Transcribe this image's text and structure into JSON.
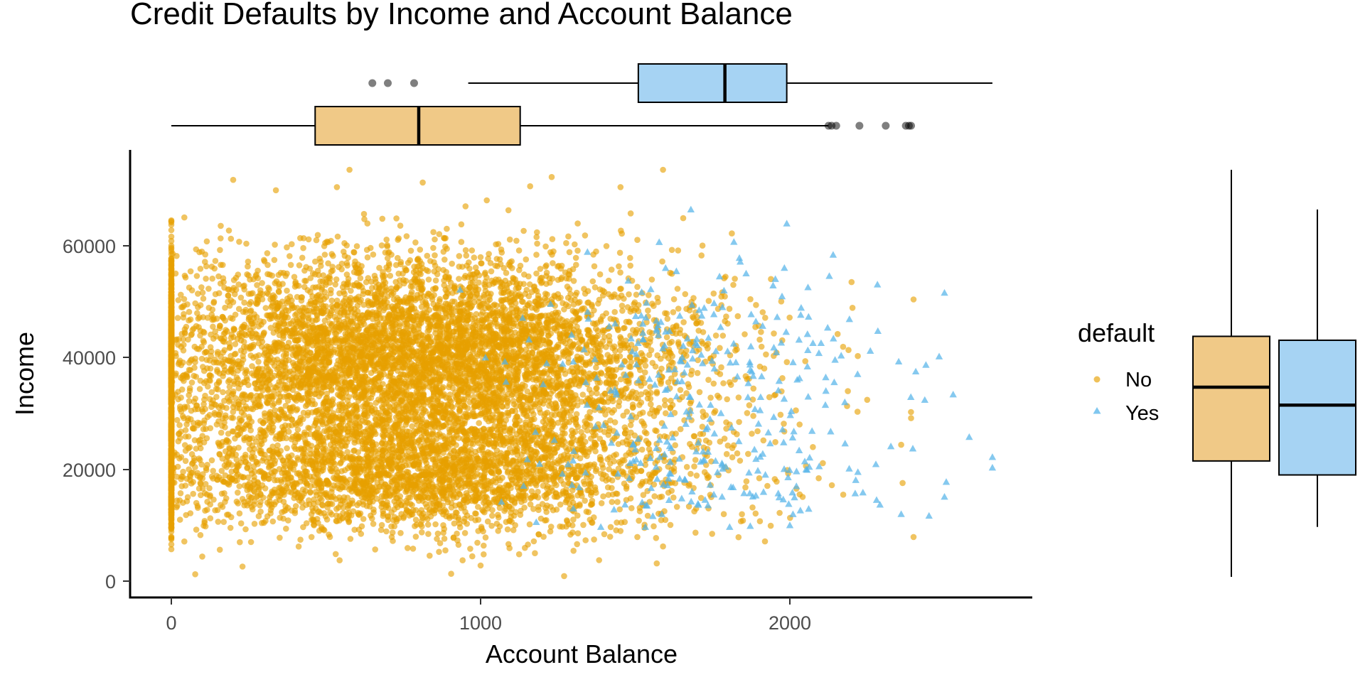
{
  "colors": {
    "no": "#E69F00",
    "yes": "#56B4E9",
    "no_box": "#F0C987",
    "yes_box": "#A6D3F3",
    "ink": "#000000",
    "tick_text": "#4D4D4D"
  },
  "chart_data": {
    "type": "scatter",
    "title": "Credit Defaults by Income and Account Balance",
    "xlabel": "Account Balance",
    "ylabel": "Income",
    "xlim": [
      -130,
      2780
    ],
    "ylim": [
      -2500,
      77000
    ],
    "x_ticks": [
      "0",
      "1000",
      "2000"
    ],
    "y_ticks": [
      "0",
      "20000",
      "40000",
      "60000"
    ],
    "grid": false,
    "legend": {
      "title": "default",
      "position": "right",
      "entries": [
        "No",
        "Yes"
      ]
    },
    "series": [
      {
        "name": "No",
        "color": "#E69F00",
        "marker": "circle",
        "point_count_drawn": 9667,
        "balance_distribution": {
          "zero_fraction": 0.08,
          "q1": 465,
          "median": 800,
          "q3": 1128,
          "max": 2392
        },
        "income_distribution": {
          "q1": 21500,
          "median": 34700,
          "q3": 43800,
          "min": 770,
          "max": 73600
        },
        "sample_points": [
          {
            "x": 0,
            "y": 62800
          },
          {
            "x": 0,
            "y": 9500
          },
          {
            "x": 100,
            "y": 4400
          },
          {
            "x": 230,
            "y": 2600
          },
          {
            "x": 1270,
            "y": 900
          },
          {
            "x": 1000,
            "y": 2800
          },
          {
            "x": 1590,
            "y": 73600
          },
          {
            "x": 1230,
            "y": 72300
          },
          {
            "x": 200,
            "y": 71800
          },
          {
            "x": 2400,
            "y": 50400
          },
          {
            "x": 2400,
            "y": 7900
          },
          {
            "x": 2360,
            "y": 24400
          }
        ]
      },
      {
        "name": "Yes",
        "color": "#56B4E9",
        "marker": "triangle",
        "point_count_drawn": 333,
        "balance_distribution": {
          "q1": 1510,
          "median": 1790,
          "q3": 1990,
          "whisker_low": 960,
          "max": 2655
        },
        "income_distribution": {
          "q1": 19000,
          "median": 31500,
          "q3": 43100,
          "min": 9700,
          "max": 66500
        },
        "sample_points": [
          {
            "x": 2655,
            "y": 22200
          },
          {
            "x": 2580,
            "y": 25800
          },
          {
            "x": 2500,
            "y": 51600
          },
          {
            "x": 2500,
            "y": 15100
          },
          {
            "x": 2450,
            "y": 11700
          },
          {
            "x": 2440,
            "y": 38700
          },
          {
            "x": 1680,
            "y": 66500
          },
          {
            "x": 1990,
            "y": 64000
          },
          {
            "x": 2140,
            "y": 58400
          },
          {
            "x": 2000,
            "y": 10000
          },
          {
            "x": 2360,
            "y": 12000
          },
          {
            "x": 1300,
            "y": 13000
          }
        ]
      }
    ],
    "marginal_top_boxplots": [
      {
        "group": "No",
        "whisker_low": 0,
        "q1": 465,
        "median": 800,
        "q3": 1128,
        "whisker_high": 2125,
        "outliers": [
          2125,
          2135,
          2150,
          2225,
          2310,
          2375,
          2385,
          2392
        ]
      },
      {
        "group": "Yes",
        "whisker_low": 960,
        "q1": 1510,
        "median": 1790,
        "q3": 1990,
        "whisker_high": 2655,
        "outliers": [
          650,
          700,
          785
        ]
      }
    ],
    "marginal_right_boxplots": [
      {
        "group": "No",
        "whisker_low": 770,
        "q1": 21500,
        "median": 34700,
        "q3": 43800,
        "whisker_high": 73600
      },
      {
        "group": "Yes",
        "whisker_low": 9700,
        "q1": 19000,
        "median": 31500,
        "q3": 43100,
        "whisker_high": 66500
      }
    ]
  }
}
